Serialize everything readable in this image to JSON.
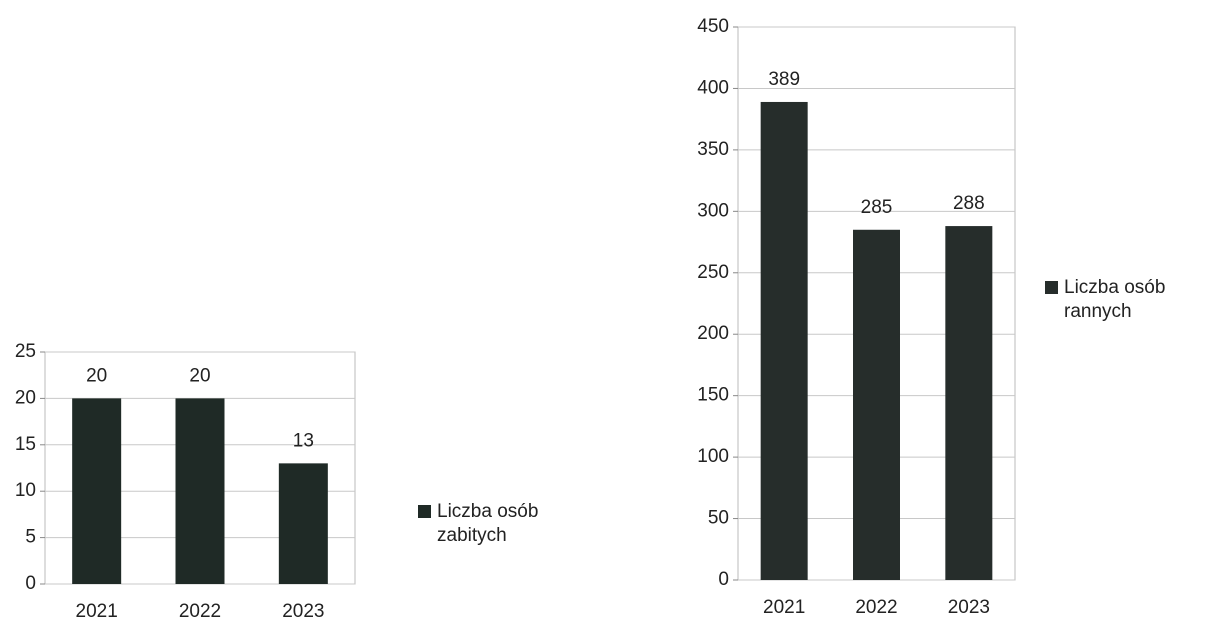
{
  "chart_data": [
    {
      "type": "bar",
      "categories": [
        "2021",
        "2022",
        "2023"
      ],
      "series": [
        {
          "name": "Liczba osób zabitych",
          "color": "#1f2a26",
          "values": [
            20,
            20,
            13
          ]
        }
      ],
      "ylim": [
        0,
        25
      ],
      "yticks": [
        0,
        5,
        10,
        15,
        20,
        25
      ],
      "grid": true
    },
    {
      "type": "bar",
      "categories": [
        "2021",
        "2022",
        "2023"
      ],
      "series": [
        {
          "name": "Liczba osób rannych",
          "color": "#262d2b",
          "values": [
            389,
            285,
            288
          ]
        }
      ],
      "ylim": [
        0,
        450
      ],
      "yticks": [
        0,
        50,
        100,
        150,
        200,
        250,
        300,
        350,
        400,
        450
      ],
      "grid": true
    }
  ]
}
